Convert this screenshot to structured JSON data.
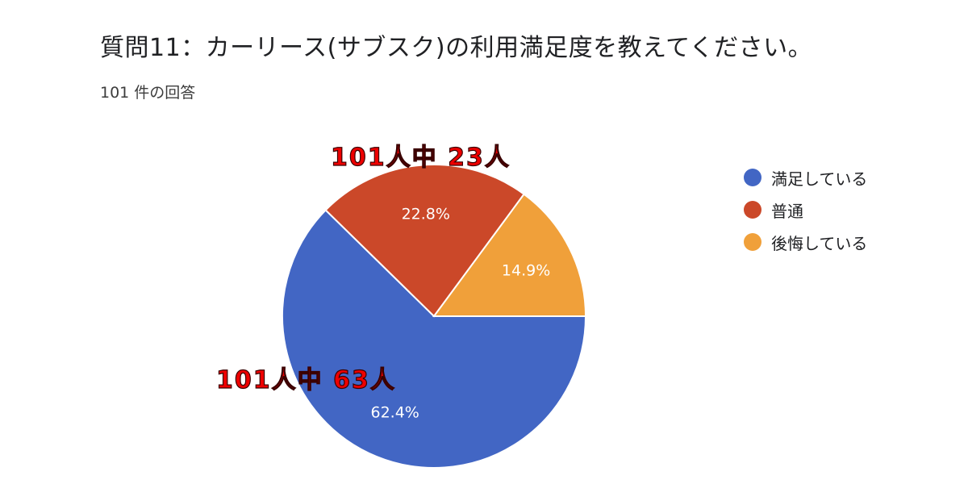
{
  "header": {
    "title": "質問11：カーリース(サブスク)の利用満足度を教えてください。",
    "response_count": "101 件の回答"
  },
  "annotations": [
    {
      "text": "101人中 23人",
      "target": "普通"
    },
    {
      "text": "101人中 63人",
      "target": "満足している"
    }
  ],
  "chart_data": {
    "type": "pie",
    "categories": [
      "満足している",
      "普通",
      "後悔している"
    ],
    "values": [
      62.4,
      22.8,
      14.9
    ],
    "labels": [
      "62.4%",
      "22.8%",
      "14.9%"
    ],
    "colors": [
      "#4266c4",
      "#cb4829",
      "#f0a03a"
    ],
    "legend_position": "right"
  }
}
